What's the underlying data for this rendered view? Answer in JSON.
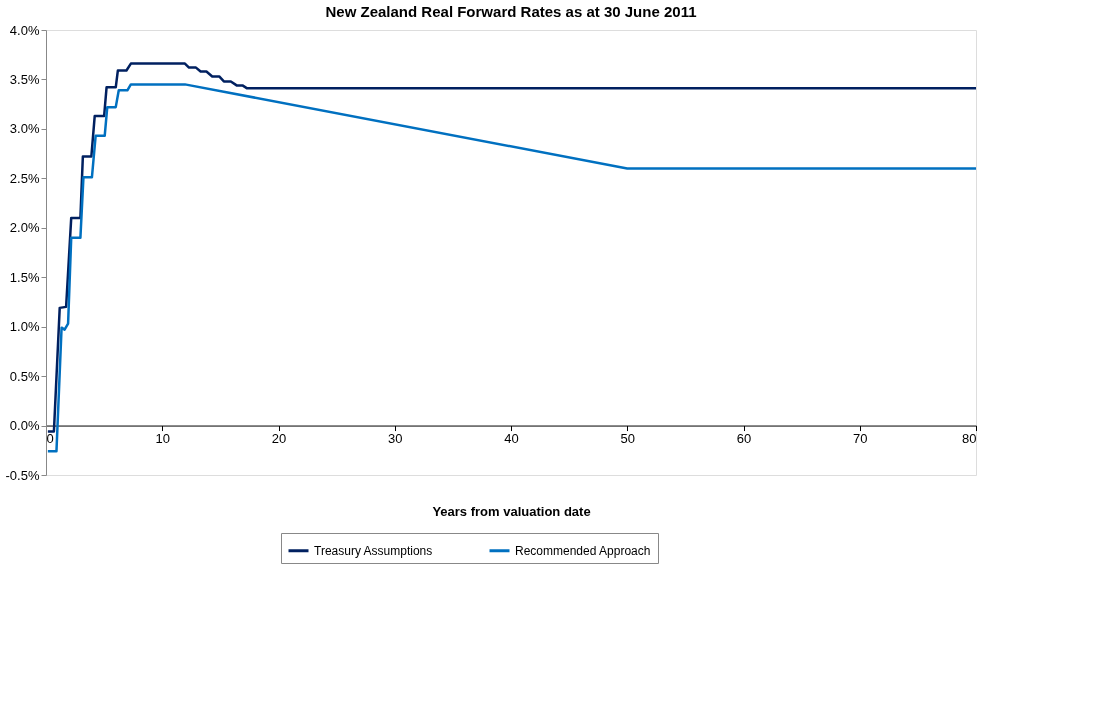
{
  "chart_data": {
    "type": "line",
    "title": "New Zealand Real Forward Rates as at 30 June 2011",
    "xlabel": "Years from valuation date",
    "xlim": [
      0,
      80
    ],
    "xticks": [
      0,
      10,
      20,
      30,
      40,
      50,
      60,
      70,
      80
    ],
    "ylim": [
      -0.5,
      4.0
    ],
    "yticks": [
      {
        "value": -0.5,
        "label": "-0.5%"
      },
      {
        "value": 0,
        "label": "0.0%"
      },
      {
        "value": 0.5,
        "label": "0.5%"
      },
      {
        "value": 1.0,
        "label": "1.0%"
      },
      {
        "value": 1.5,
        "label": "1.5%"
      },
      {
        "value": 2.0,
        "label": "2.0%"
      },
      {
        "value": 2.5,
        "label": "2.5%"
      },
      {
        "value": 3.0,
        "label": "3.0%"
      },
      {
        "value": 3.5,
        "label": "3.5%"
      },
      {
        "value": 4.0,
        "label": "4.0%"
      }
    ],
    "grid": false,
    "legend": "bottom",
    "marker": "none",
    "line_style": "solid",
    "series": [
      {
        "name": "Treasury Assumptions",
        "color": "#002060",
        "x": [
          0.16,
          0.68,
          1.18,
          1.73,
          2.17,
          2.96,
          3.17,
          3.9,
          4.19,
          5.0,
          5.21,
          6.0,
          6.18,
          6.92,
          7.3,
          11.95,
          12.3,
          12.9,
          13.3,
          13.8,
          14.3,
          14.9,
          15.3,
          15.9,
          16.4,
          16.9,
          17.3,
          80
        ],
        "values": [
          -0.06,
          -0.06,
          1.19,
          1.2,
          2.1,
          2.1,
          2.72,
          2.72,
          3.13,
          3.13,
          3.42,
          3.42,
          3.59,
          3.59,
          3.66,
          3.66,
          3.62,
          3.62,
          3.58,
          3.58,
          3.53,
          3.53,
          3.48,
          3.48,
          3.44,
          3.44,
          3.41,
          3.41
        ]
      },
      {
        "name": "Recommended Approach",
        "color": "#0070c0",
        "x": [
          0.16,
          0.9,
          1.34,
          1.6,
          1.9,
          2.17,
          2.96,
          3.22,
          3.95,
          4.27,
          5.05,
          5.27,
          6.0,
          6.26,
          7.0,
          7.3,
          11.95,
          50,
          80
        ],
        "values": [
          -0.26,
          -0.26,
          0.99,
          0.97,
          1.03,
          1.9,
          1.9,
          2.51,
          2.51,
          2.93,
          2.93,
          3.22,
          3.22,
          3.39,
          3.39,
          3.45,
          3.45,
          2.6,
          2.6
        ]
      }
    ]
  }
}
